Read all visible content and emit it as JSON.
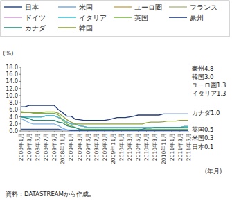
{
  "chart_data": {
    "type": "line",
    "y_label": "(%)",
    "x_label": "(年月)",
    "source": "資料：DATASTREAMから作成。",
    "categories": [
      "2008年1月",
      null,
      "2008年3月",
      null,
      "2008年5月",
      null,
      "2008年7月",
      null,
      "2008年9月",
      null,
      "2008年11月",
      null,
      "2009年1月",
      null,
      "2009年3月",
      null,
      "2009年5月",
      null,
      "2009年7月",
      null,
      "2009年9月",
      null,
      "2009年11月",
      null,
      "2010年1月",
      null,
      "2010年3月",
      null,
      "2010年5月",
      null,
      "2010年7月",
      null,
      "2010年9月",
      null,
      "2010年11月",
      null,
      "2011年1月",
      null,
      "2011年3月",
      null,
      "2011年5月"
    ],
    "series": [
      {
        "name": "日本",
        "color": "#2f55a8",
        "values": [
          0.5,
          0.5,
          0.5,
          0.5,
          0.5,
          0.5,
          0.5,
          0.5,
          0.5,
          0.5,
          0.3,
          0.3,
          0.1,
          0.1,
          0.1,
          0.1,
          0.1,
          0.1,
          0.1,
          0.1,
          0.1,
          0.1,
          0.1,
          0.1,
          0.1,
          0.1,
          0.1,
          0.1,
          0.1,
          0.1,
          0.1,
          0.1,
          0.1,
          0.1,
          0.1,
          0.1,
          0.1,
          0.1,
          0.1,
          0.1,
          0.1
        ]
      },
      {
        "name": "米国",
        "color": "#7fb2e2",
        "values": [
          3.5,
          3.0,
          2.3,
          2.0,
          2.0,
          2.0,
          2.0,
          2.0,
          2.0,
          1.5,
          0.8,
          0.3,
          0.3,
          0.3,
          0.3,
          0.3,
          0.3,
          0.3,
          0.3,
          0.3,
          0.3,
          0.3,
          0.3,
          0.3,
          0.3,
          0.3,
          0.3,
          0.3,
          0.3,
          0.3,
          0.3,
          0.3,
          0.3,
          0.3,
          0.3,
          0.3,
          0.3,
          0.3,
          0.3,
          0.3,
          0.3
        ]
      },
      {
        "name": "ユーロ圏",
        "color": "#cdb55c",
        "values": [
          4.0,
          4.0,
          4.0,
          4.0,
          4.0,
          4.0,
          4.3,
          4.3,
          4.3,
          3.8,
          3.3,
          2.5,
          2.0,
          2.0,
          1.5,
          1.3,
          1.0,
          1.0,
          1.0,
          1.0,
          1.0,
          1.0,
          1.0,
          1.0,
          1.0,
          1.0,
          1.0,
          1.0,
          1.0,
          1.0,
          1.0,
          1.0,
          1.0,
          1.0,
          1.0,
          1.0,
          1.0,
          1.0,
          1.0,
          1.3,
          1.3
        ]
      },
      {
        "name": "フランス",
        "color": "#b9c48e",
        "values": [
          4.0,
          4.0,
          4.0,
          4.0,
          4.0,
          4.0,
          4.3,
          4.3,
          4.3,
          3.8,
          3.3,
          2.5,
          2.0,
          2.0,
          1.5,
          1.3,
          1.0,
          1.0,
          1.0,
          1.0,
          1.0,
          1.0,
          1.0,
          1.0,
          1.0,
          1.0,
          1.0,
          1.0,
          1.0,
          1.0,
          1.0,
          1.0,
          1.0,
          1.0,
          1.0,
          1.0,
          1.0,
          1.0,
          1.0,
          1.3,
          1.3
        ]
      },
      {
        "name": "ドイツ",
        "color": "#cf9fd2",
        "values": [
          4.0,
          4.0,
          4.0,
          4.0,
          4.0,
          4.0,
          4.3,
          4.3,
          4.3,
          3.8,
          3.3,
          2.5,
          2.0,
          2.0,
          1.5,
          1.3,
          1.0,
          1.0,
          1.0,
          1.0,
          1.0,
          1.0,
          1.0,
          1.0,
          1.0,
          1.0,
          1.0,
          1.0,
          1.0,
          1.0,
          1.0,
          1.0,
          1.0,
          1.0,
          1.0,
          1.0,
          1.0,
          1.0,
          1.0,
          1.3,
          1.3
        ]
      },
      {
        "name": "イタリア",
        "color": "#3fbfd2",
        "values": [
          4.0,
          4.0,
          4.0,
          4.0,
          4.0,
          4.0,
          4.3,
          4.3,
          4.3,
          3.8,
          3.3,
          2.5,
          2.0,
          2.0,
          1.5,
          1.3,
          1.0,
          1.0,
          1.0,
          1.0,
          1.0,
          1.0,
          1.0,
          1.0,
          1.0,
          1.0,
          1.0,
          1.0,
          1.0,
          1.0,
          1.0,
          1.0,
          1.0,
          1.0,
          1.0,
          1.0,
          1.0,
          1.0,
          1.0,
          1.3,
          1.3
        ]
      },
      {
        "name": "英国",
        "color": "#7db34b",
        "values": [
          5.5,
          5.3,
          5.3,
          5.0,
          5.0,
          5.0,
          5.0,
          5.0,
          5.0,
          4.5,
          3.0,
          2.0,
          1.5,
          1.0,
          0.5,
          0.5,
          0.5,
          0.5,
          0.5,
          0.5,
          0.5,
          0.5,
          0.5,
          0.5,
          0.5,
          0.5,
          0.5,
          0.5,
          0.5,
          0.5,
          0.5,
          0.5,
          0.5,
          0.5,
          0.5,
          0.5,
          0.5,
          0.5,
          0.5,
          0.5,
          0.5
        ]
      },
      {
        "name": "豪州",
        "color": "#1f3a7a",
        "values": [
          6.8,
          6.8,
          7.2,
          7.2,
          7.2,
          7.2,
          7.2,
          7.2,
          7.2,
          6.0,
          5.2,
          4.2,
          4.2,
          3.3,
          3.2,
          3.0,
          3.0,
          3.0,
          3.0,
          3.0,
          3.0,
          3.2,
          3.5,
          3.8,
          3.8,
          3.8,
          4.0,
          4.2,
          4.5,
          4.5,
          4.5,
          4.5,
          4.5,
          4.5,
          4.8,
          4.8,
          4.8,
          4.8,
          4.8,
          4.8,
          4.8
        ]
      },
      {
        "name": "カナダ",
        "color": "#2a8c7a",
        "values": [
          4.0,
          3.8,
          3.5,
          3.0,
          3.0,
          3.0,
          3.0,
          3.0,
          3.0,
          2.5,
          2.3,
          1.5,
          1.2,
          1.0,
          0.5,
          0.3,
          0.3,
          0.3,
          0.3,
          0.3,
          0.3,
          0.3,
          0.3,
          0.3,
          0.3,
          0.3,
          0.3,
          0.3,
          0.3,
          0.5,
          0.8,
          0.8,
          1.0,
          1.0,
          1.0,
          1.0,
          1.0,
          1.0,
          1.0,
          1.0,
          1.0
        ]
      },
      {
        "name": "韓国",
        "color": "#8ea33f",
        "values": [
          5.2,
          5.2,
          5.2,
          5.2,
          5.2,
          5.2,
          5.4,
          5.4,
          5.4,
          5.0,
          4.2,
          3.2,
          2.5,
          2.0,
          2.0,
          2.0,
          2.0,
          2.0,
          2.0,
          2.0,
          2.0,
          2.0,
          2.0,
          2.0,
          2.0,
          2.0,
          2.0,
          2.0,
          2.0,
          2.0,
          2.3,
          2.5,
          2.5,
          2.5,
          2.6,
          2.8,
          2.8,
          2.8,
          3.0,
          3.0,
          3.0
        ]
      }
    ],
    "annotations": [
      "豪州4.8",
      "韓国3.0",
      "ユーロ圏1.3",
      "イタリア1.3",
      "カナダ1.0",
      "英国0.5",
      "米国0.3",
      "日本0.1"
    ],
    "ylim": [
      0,
      18
    ],
    "yticks": [
      {
        "value": 0,
        "label": "0.0"
      },
      {
        "value": 2,
        "label": "2.0"
      },
      {
        "value": 4,
        "label": "4.0"
      },
      {
        "value": 6,
        "label": "6.0"
      },
      {
        "value": 8,
        "label": "8.0"
      },
      {
        "value": 10,
        "label": "10.0"
      },
      {
        "value": 12,
        "label": "12.0"
      },
      {
        "value": 14,
        "label": "14.0"
      },
      {
        "value": 16,
        "label": "16.0"
      },
      {
        "value": 18,
        "label": "18.0"
      }
    ],
    "grid": false,
    "legend": "top"
  }
}
